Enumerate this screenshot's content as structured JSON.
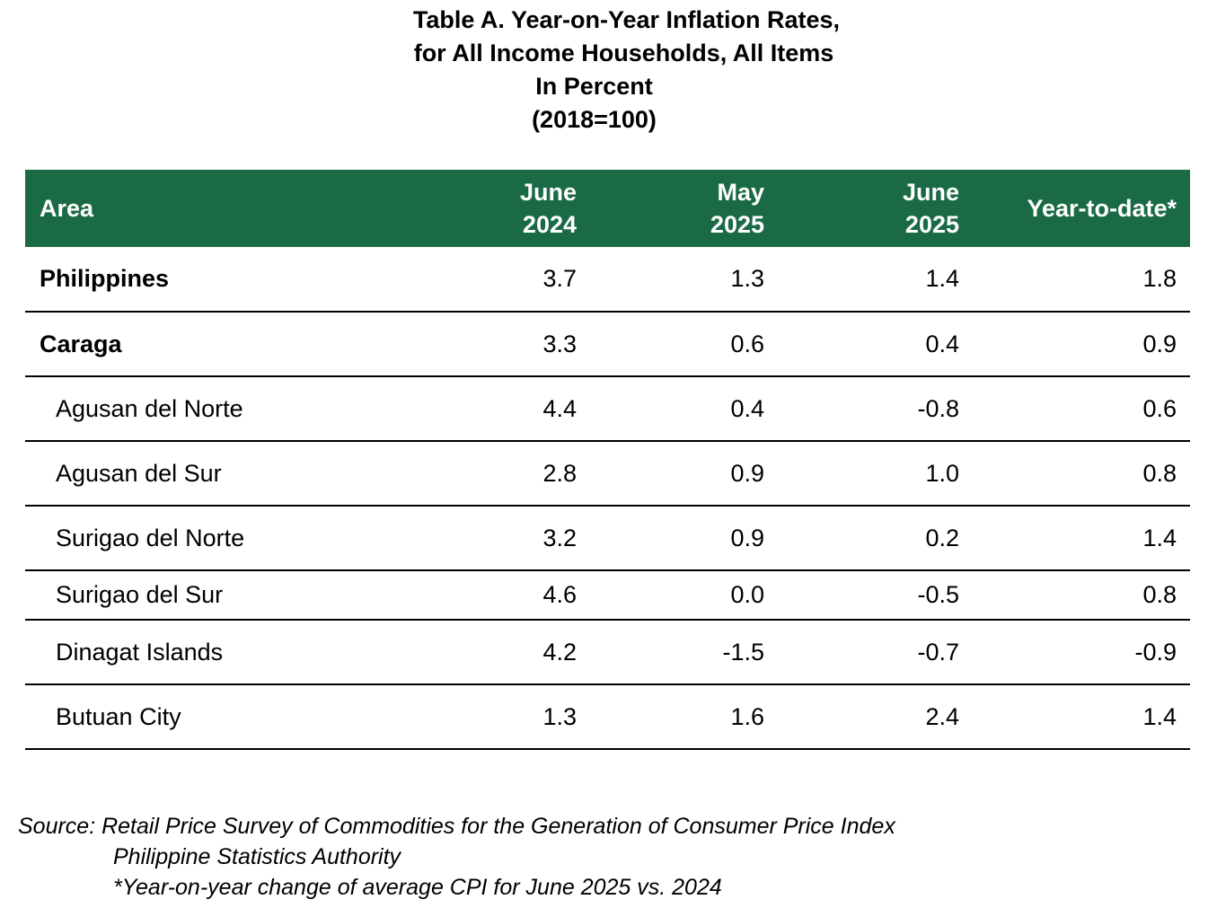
{
  "title": {
    "line1": "Table A. Year-on-Year Inflation Rates,",
    "line2": "for All Income Households, All Items",
    "line3": "In Percent",
    "line4": "(2018=100)"
  },
  "table": {
    "headers": {
      "area": "Area",
      "c1_line1": "June",
      "c1_line2": "2024",
      "c2_line1": "May",
      "c2_line2": "2025",
      "c3_line1": "June",
      "c3_line2": "2025",
      "c4": "Year-to-date*"
    },
    "header_bg_color": "#1a6b45",
    "rows": [
      {
        "area": "Philippines",
        "v1": "3.7",
        "v2": "1.3",
        "v3": "1.4",
        "v4": "1.8"
      },
      {
        "area": "Caraga",
        "v1": "3.3",
        "v2": "0.6",
        "v3": "0.4",
        "v4": "0.9"
      },
      {
        "area": "Agusan del Norte",
        "v1": "4.4",
        "v2": "0.4",
        "v3": "-0.8",
        "v4": "0.6"
      },
      {
        "area": "Agusan del Sur",
        "v1": "2.8",
        "v2": "0.9",
        "v3": "1.0",
        "v4": "0.8"
      },
      {
        "area": "Surigao del Norte",
        "v1": "3.2",
        "v2": "0.9",
        "v3": "0.2",
        "v4": "1.4"
      },
      {
        "area": "Surigao del Sur",
        "v1": "4.6",
        "v2": "0.0",
        "v3": "-0.5",
        "v4": "0.8"
      },
      {
        "area": "Dinagat Islands",
        "v1": "4.2",
        "v2": "-1.5",
        "v3": "-0.7",
        "v4": "-0.9"
      },
      {
        "area": "Butuan City",
        "v1": "1.3",
        "v2": "1.6",
        "v3": "2.4",
        "v4": "1.4"
      }
    ]
  },
  "footnote": {
    "line1": "Source: Retail Price Survey of Commodities for the Generation of Consumer Price Index",
    "line2": "Philippine Statistics Authority",
    "line3": "*Year-on-year change of average CPI for June 2025 vs. 2024"
  }
}
